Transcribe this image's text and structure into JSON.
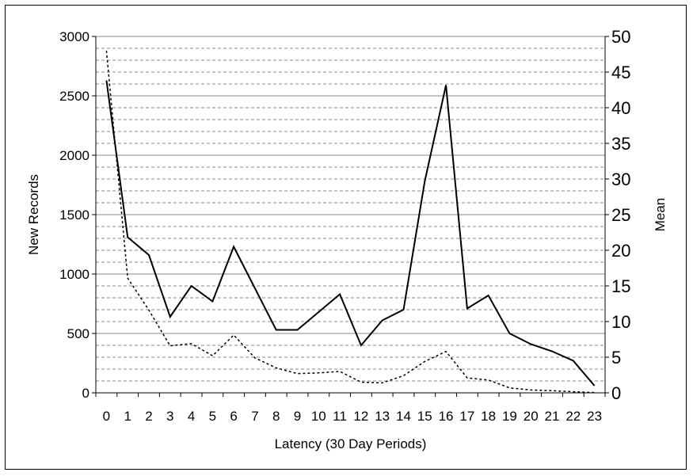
{
  "chart_data": {
    "type": "line",
    "title": "",
    "xlabel": "Latency (30 Day Periods)",
    "ylabel": "New Records",
    "y2label": "Mean",
    "ylim": [
      0,
      3000
    ],
    "y2lim": [
      0,
      50
    ],
    "yticks": [
      "0",
      "500",
      "1000",
      "1500",
      "2000",
      "2500",
      "3000"
    ],
    "y2ticks": [
      "0",
      "5",
      "10",
      "15",
      "20",
      "25",
      "30",
      "35",
      "40",
      "45",
      "50"
    ],
    "x": [
      "0",
      "1",
      "2",
      "3",
      "4",
      "5",
      "6",
      "7",
      "8",
      "9",
      "10",
      "11",
      "12",
      "13",
      "14",
      "15",
      "16",
      "17",
      "18",
      "19",
      "20",
      "21",
      "22",
      "23"
    ],
    "grid": true,
    "series": [
      {
        "axis": "left",
        "style": "solid",
        "color": "#000000",
        "values": [
          2630,
          1310,
          1160,
          640,
          900,
          770,
          1230,
          880,
          530,
          530,
          680,
          830,
          400,
          610,
          700,
          1780,
          2590,
          710,
          820,
          500,
          410,
          350,
          270,
          60
        ]
      },
      {
        "axis": "right",
        "style": "dotted",
        "color": "#000000",
        "values": [
          48,
          16.1,
          11.6,
          6.6,
          6.9,
          5.2,
          8.1,
          4.9,
          3.5,
          2.7,
          2.8,
          3.0,
          1.5,
          1.4,
          2.4,
          4.4,
          5.8,
          2.1,
          1.8,
          0.7,
          0.4,
          0.3,
          0.15,
          0.05
        ]
      }
    ]
  }
}
